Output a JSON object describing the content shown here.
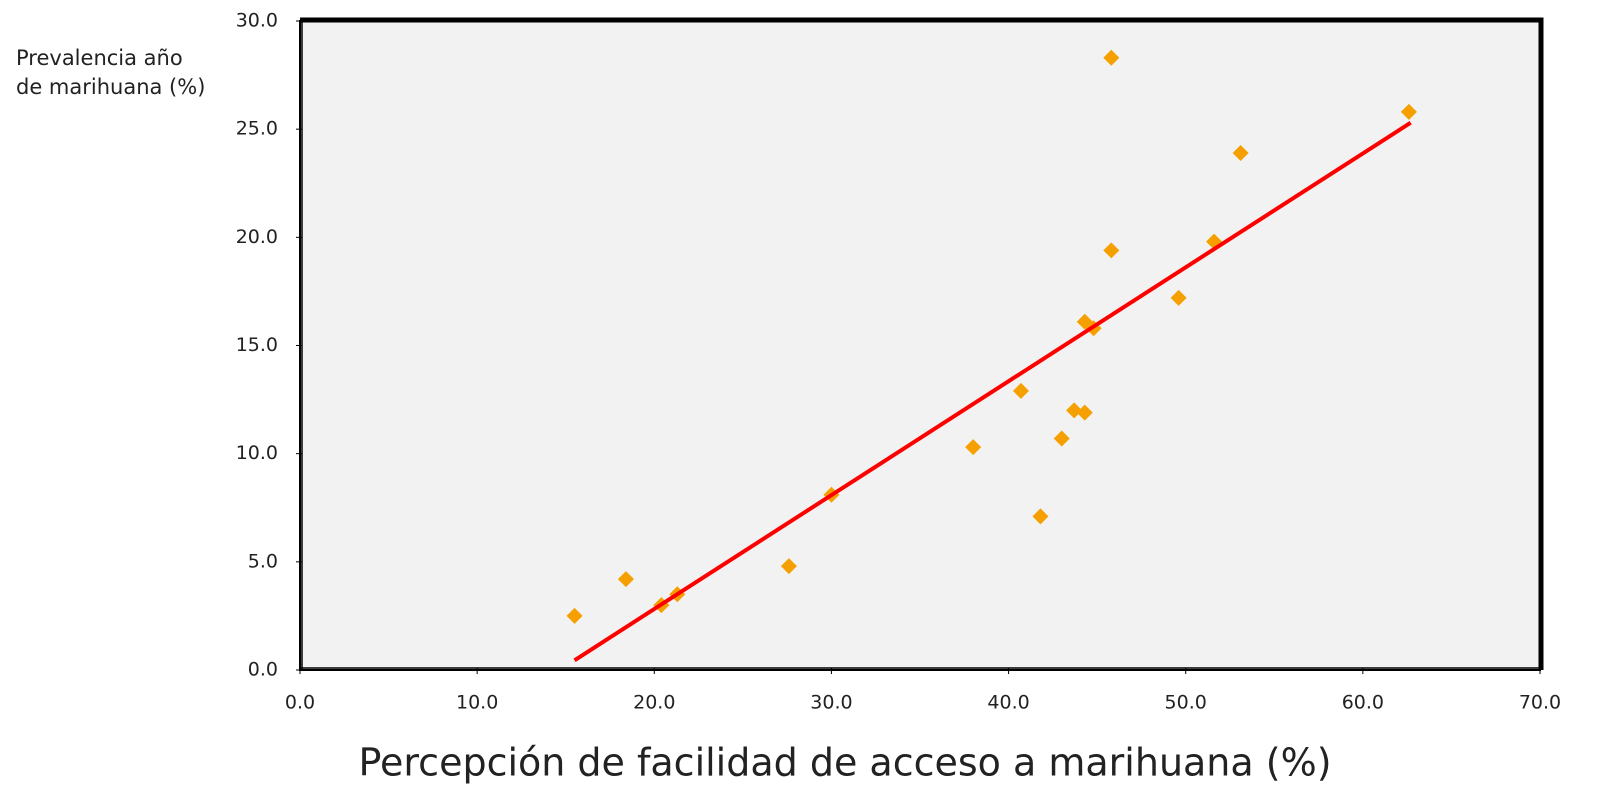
{
  "chart_data": {
    "type": "scatter",
    "x_label": "Percepción de facilidad de acceso a marihuana (%)",
    "y_label": "Prevalencia año de marihuana (%)",
    "series": [
      {
        "color": "#f5a000",
        "x": [
          15.5,
          18.4,
          20.4,
          21.3,
          27.6,
          30.0,
          38.0,
          40.7,
          41.8,
          43.0,
          43.7,
          44.3,
          45.8,
          44.3,
          44.8,
          45.8,
          49.6,
          51.6,
          53.1,
          62.6
        ],
        "values": [
          2.5,
          4.2,
          3.0,
          3.5,
          4.8,
          8.1,
          10.3,
          12.9,
          7.1,
          10.7,
          12.0,
          11.9,
          28.3,
          16.1,
          15.8,
          19.4,
          17.2,
          19.8,
          23.9,
          25.8
        ]
      }
    ],
    "trendline": {
      "color": "#ff0000",
      "x": [
        15.5,
        62.7
      ],
      "values": [
        0.45,
        25.3
      ]
    },
    "xlim": [
      0,
      70
    ],
    "xticks": [
      {
        "value": 0,
        "label": "0.0"
      },
      {
        "value": 10,
        "label": "10.0"
      },
      {
        "value": 20,
        "label": "20.0"
      },
      {
        "value": 30,
        "label": "30.0"
      },
      {
        "value": 40,
        "label": "40.0"
      },
      {
        "value": 50,
        "label": "50.0"
      },
      {
        "value": 60,
        "label": "60.0"
      },
      {
        "value": 70,
        "label": "70.0"
      }
    ],
    "ylim": [
      0,
      30
    ],
    "yticks": [
      {
        "value": 0,
        "label": "0.0"
      },
      {
        "value": 5,
        "label": "5.0"
      },
      {
        "value": 10,
        "label": "10.0"
      },
      {
        "value": 15,
        "label": "15.0"
      },
      {
        "value": 20,
        "label": "20.0"
      },
      {
        "value": 25,
        "label": "25.0"
      },
      {
        "value": 30,
        "label": "30.0"
      }
    ],
    "grid": false
  }
}
